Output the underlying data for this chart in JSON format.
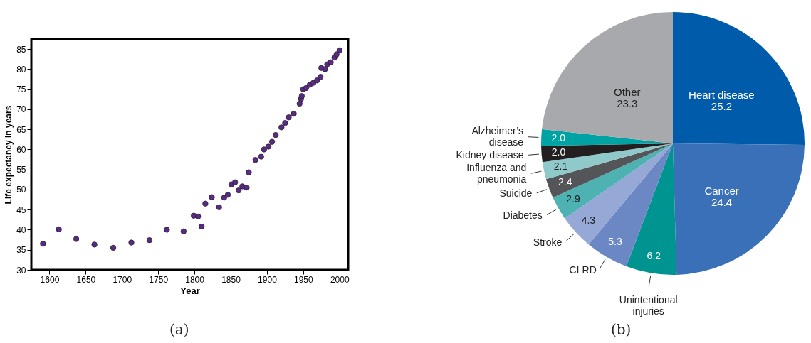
{
  "chart_data": [
    {
      "type": "scatter",
      "xlabel": "Year",
      "ylabel": "Life expectancy in years",
      "annotations": [
        "(a)"
      ],
      "marker": "circle",
      "grid": false,
      "xlim": [
        1575,
        2012
      ],
      "ylim": [
        30,
        87.5
      ],
      "xticks": [
        1600,
        1650,
        1700,
        1750,
        1800,
        1850,
        1900,
        1950,
        2000
      ],
      "yticks": [
        30,
        35,
        40,
        45,
        50,
        55,
        60,
        65,
        70,
        75,
        80,
        85
      ],
      "x": [
        1591,
        1613,
        1637,
        1662,
        1688,
        1713,
        1738,
        1762,
        1785,
        1799,
        1805,
        1810,
        1815,
        1824,
        1834,
        1841,
        1846,
        1851,
        1856,
        1861,
        1866,
        1872,
        1875,
        1884,
        1892,
        1896,
        1902,
        1907,
        1912,
        1920,
        1925,
        1930,
        1937,
        1945,
        1947,
        1948,
        1950,
        1954,
        1959,
        1964,
        1969,
        1974,
        1975,
        1980,
        1983,
        1988,
        1993,
        1996,
        2000
      ],
      "series": [
        {
          "color": "#5b2a86",
          "values": [
            36.5,
            40.1,
            37.7,
            36.3,
            35.5,
            36.8,
            37.4,
            40.0,
            39.6,
            43.5,
            43.3,
            40.8,
            46.5,
            48.1,
            45.6,
            48.0,
            48.7,
            51.3,
            51.8,
            49.8,
            50.8,
            50.5,
            54.3,
            57.4,
            58.2,
            60.0,
            60.7,
            61.9,
            63.6,
            65.5,
            66.6,
            68.0,
            68.9,
            71.4,
            72.6,
            73.3,
            75.0,
            75.3,
            76.1,
            76.6,
            77.2,
            78.1,
            80.3,
            80.0,
            81.2,
            81.7,
            82.9,
            83.7,
            84.7
          ]
        }
      ]
    },
    {
      "type": "pie",
      "annotations": [
        "(b)"
      ],
      "value_labels": [
        "25.2",
        "24.4",
        "6.2",
        "5.3",
        "4.3",
        "2.9",
        "2.4",
        "2.1",
        "2.0",
        "2.0",
        "23.3"
      ],
      "categories": [
        "Heart disease",
        "Cancer",
        "Unintentional injuries",
        "CLRD",
        "Stroke",
        "Diabetes",
        "Suicide",
        "Influenza and pneumonia",
        "Kidney disease",
        "Alzheimer’s disease",
        "Other"
      ],
      "values": [
        25.2,
        24.4,
        6.2,
        5.3,
        4.3,
        2.9,
        2.4,
        2.1,
        2.0,
        2.0,
        23.3
      ],
      "colors": [
        "#005bab",
        "#3a70b7",
        "#009490",
        "#6b88c4",
        "#95a8d6",
        "#4fb2b2",
        "#545559",
        "#8fc9c9",
        "#231f20",
        "#00a3a3",
        "#a7a9ac"
      ]
    }
  ]
}
